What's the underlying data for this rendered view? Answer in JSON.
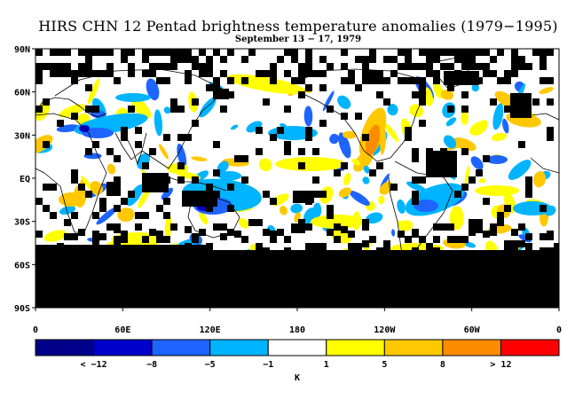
{
  "title": "HIRS CHN 12 Pentad brightness temperature anomalies (1979−1995)",
  "subtitle": "September 13 − 17, 1979",
  "lat_labels": [
    "90N",
    "60N",
    "30N",
    "EQ",
    "30S",
    "60S",
    "90S"
  ],
  "lon_labels": [
    "0",
    "60E",
    "120E",
    "180",
    "120W",
    "60W",
    "0"
  ],
  "colorbar": {
    "colors": [
      "#00008b",
      "#0000cd",
      "#1e64ff",
      "#00b4ff",
      "#ffffff",
      "#ffff00",
      "#ffc800",
      "#ff8c00",
      "#ff0000"
    ],
    "labels": [
      "< −12",
      "−8",
      "−5",
      "−1",
      "1",
      "5",
      "8",
      "> 12"
    ],
    "unit": "K"
  },
  "map": {
    "missing_color": "#000000",
    "coastline_color": "#000000"
  }
}
